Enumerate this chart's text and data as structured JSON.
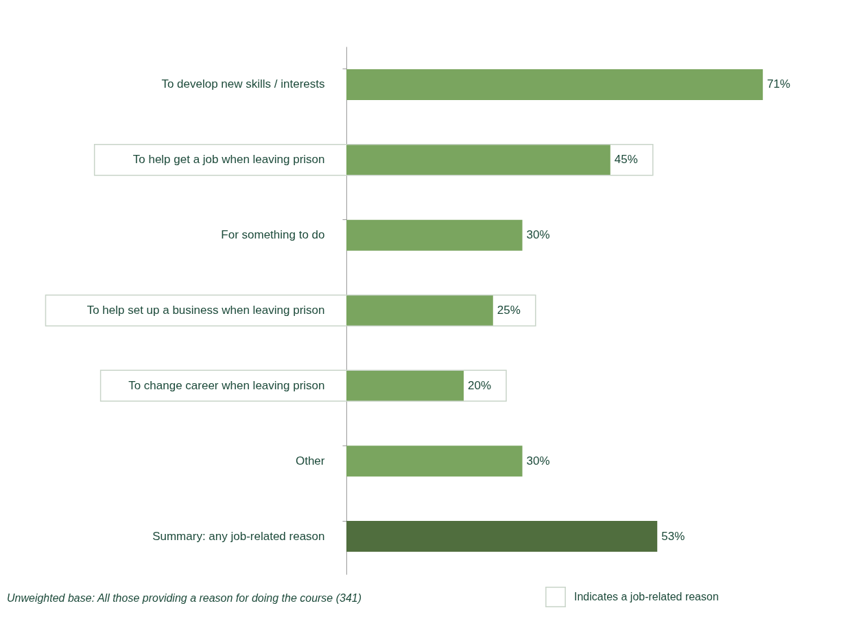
{
  "chart_data": {
    "type": "bar",
    "orientation": "horizontal",
    "data_labels": true,
    "categories": [
      "To develop new skills / interests",
      "To help get a job when leaving prison",
      "For something to do",
      "To help set up a business when leaving prison",
      "To change career when leaving prison",
      "Other",
      "Summary: any job-related reason"
    ],
    "values": [
      71,
      45,
      30,
      25,
      20,
      30,
      53
    ],
    "colors": [
      "#7aa55f",
      "#7aa55f",
      "#7aa55f",
      "#7aa55f",
      "#7aa55f",
      "#7aa55f",
      "#506e3e"
    ],
    "value_labels": [
      "71%",
      "45%",
      "30%",
      "25%",
      "20%",
      "30%",
      "53%"
    ],
    "annotations": [
      "Unweighted base: All those providing a reason for doing the course (341)",
      "Indicates a job-related reason"
    ]
  }
}
